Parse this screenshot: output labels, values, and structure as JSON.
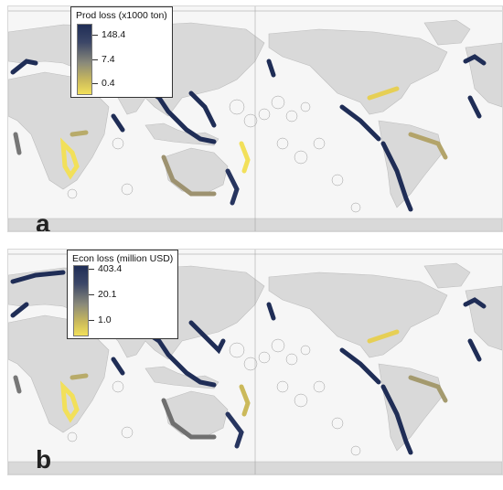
{
  "panels": [
    {
      "letter": "a",
      "legend": {
        "title": "Prod loss (x1000 ton)",
        "ticks": [
          "148.4",
          "7.4",
          "0.4"
        ]
      }
    },
    {
      "letter": "b",
      "legend": {
        "title": "Econ loss (million USD)",
        "ticks": [
          "403.4",
          "20.1",
          "1.0"
        ]
      }
    }
  ],
  "colors": {
    "high": "#1f2d56",
    "mid": "#8a8a7a",
    "low": "#f2e05a",
    "land": "#d9d9d9",
    "ocean": "#f6f6f6",
    "eez_outline": "#9a9a9a"
  }
}
